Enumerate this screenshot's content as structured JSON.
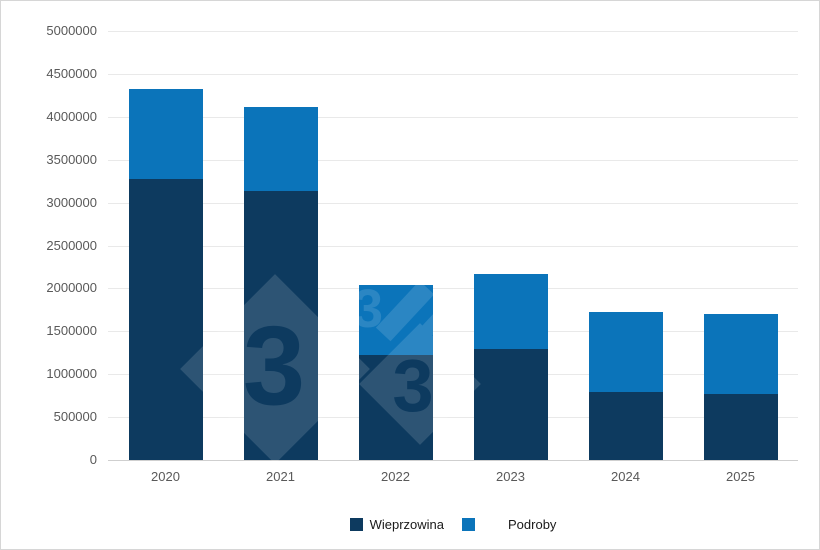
{
  "chart_data": {
    "type": "bar",
    "stacked": true,
    "title": "",
    "xlabel": "",
    "ylabel": "",
    "categories": [
      "2020",
      "2021",
      "2022",
      "2023",
      "2024",
      "2025"
    ],
    "series": [
      {
        "name": "Wieprzowina",
        "color": "#0d3a5f",
        "values": [
          3280000,
          3140000,
          1220000,
          1290000,
          790000,
          775000
        ]
      },
      {
        "name": "Podroby",
        "color": "#0b74ba",
        "values": [
          1040000,
          970000,
          820000,
          880000,
          930000,
          925000
        ]
      }
    ],
    "totals": [
      4320000,
      4110000,
      2040000,
      2170000,
      1720000,
      1700000
    ],
    "ylim": [
      0,
      5000000
    ],
    "ytick_step": 500000,
    "yticks": [
      "0",
      "500000",
      "1000000",
      "1500000",
      "2000000",
      "2500000",
      "3000000",
      "3500000",
      "4000000",
      "4500000",
      "5000000"
    ],
    "grid": true,
    "legend_position": "bottom"
  },
  "legend": {
    "items": [
      {
        "label": "Wieprzowina",
        "color": "#0d3a5f"
      },
      {
        "label": "Podroby",
        "color": "#0b74ba"
      }
    ]
  },
  "watermark": {
    "glyph": "3"
  },
  "colors": {
    "background": "#ffffff",
    "frame_border": "#d6d6d6",
    "gridline": "#e9e9e9",
    "axis_line": "#cfcfcf",
    "axis_text": "#595959",
    "legend_text": "#1a1a1a"
  }
}
